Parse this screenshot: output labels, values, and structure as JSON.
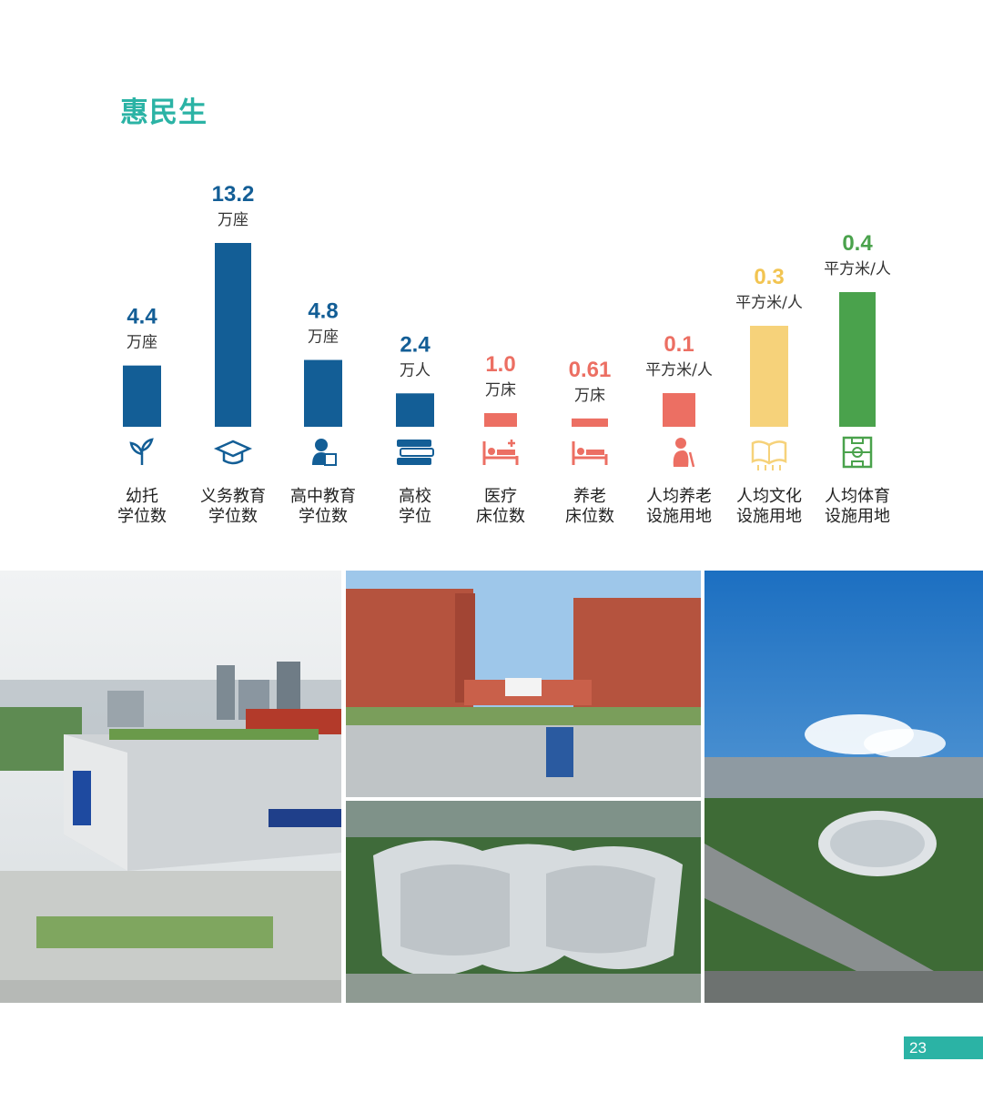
{
  "page_title": "惠民生",
  "page_number": "23",
  "colors": {
    "accent": "#2bb3a5",
    "education": "#135e96",
    "medical": "#ec6f63",
    "culture": "#f6d27a",
    "sports": "#4aa24c"
  },
  "chart_data": {
    "type": "bar",
    "title": "",
    "categories": [
      [
        "幼托",
        "学位数"
      ],
      [
        "义务教育",
        "学位数"
      ],
      [
        "高中教育",
        "学位数"
      ],
      [
        "高校",
        "学位"
      ],
      [
        "医疗",
        "床位数"
      ],
      [
        "养老",
        "床位数"
      ],
      [
        "人均养老",
        "设施用地"
      ],
      [
        "人均文化",
        "设施用地"
      ],
      [
        "人均体育",
        "设施用地"
      ]
    ],
    "values": [
      4.4,
      13.2,
      4.8,
      2.4,
      1.0,
      0.61,
      0.1,
      0.3,
      0.4
    ],
    "value_labels": [
      "4.4",
      "13.2",
      "4.8",
      "2.4",
      "1.0",
      "0.61",
      "0.1",
      "0.3",
      "0.4"
    ],
    "units": [
      "万座",
      "万座",
      "万座",
      "万人",
      "万床",
      "万床",
      "平方米/人",
      "平方米/人",
      "平方米/人"
    ],
    "groups": [
      "education",
      "education",
      "education",
      "education",
      "medical",
      "medical",
      "medical",
      "culture",
      "sports"
    ],
    "icons": [
      "sprout-icon",
      "graduation-cap-icon",
      "student-reading-icon",
      "books-icon",
      "hospital-bed-icon",
      "elderly-bed-icon",
      "elderly-person-icon",
      "open-book-icon",
      "sports-field-icon"
    ],
    "note": "",
    "grid": false,
    "legend": "none"
  }
}
